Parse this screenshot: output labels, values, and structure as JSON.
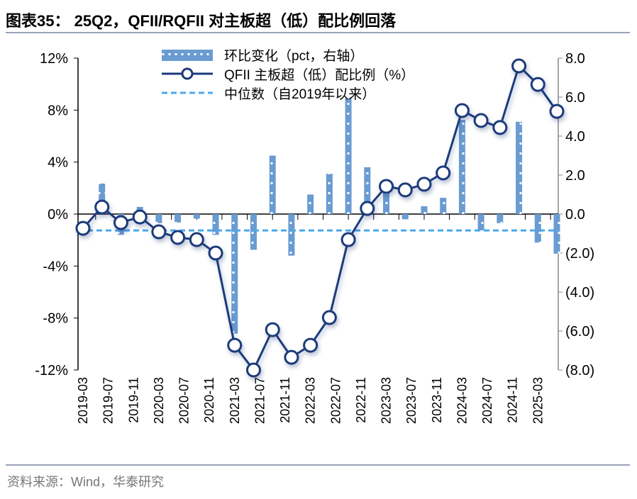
{
  "title": "图表35： 25Q2，QFII/RQFII 对主板超（低）配比例回落",
  "source": "资料来源：Wind，华泰研究",
  "colors": {
    "bar": "#6a9bd1",
    "line": "#1b3a7a",
    "median": "#4aa8ec"
  },
  "chart_data": {
    "type": "bar+line",
    "title": "25Q2，QFII/RQFII 对主板超（低）配比例回落",
    "left_axis": {
      "ylim": [
        -12,
        12
      ],
      "ticks": [
        "-12%",
        "-8%",
        "-4%",
        "0%",
        "4%",
        "8%",
        "12%"
      ],
      "tick_values": [
        -12,
        -8,
        -4,
        0,
        4,
        8,
        12
      ]
    },
    "right_axis": {
      "ylim": [
        -8,
        8
      ],
      "ticks": [
        "(8.0)",
        "(6.0)",
        "(4.0)",
        "(2.0)",
        "0.0",
        "2.0",
        "4.0",
        "6.0",
        "8.0"
      ],
      "tick_values": [
        -8,
        -6,
        -4,
        -2,
        0,
        2,
        4,
        6,
        8
      ]
    },
    "x_tick_labels": [
      "2019-03",
      "2019-07",
      "2019-11",
      "2020-03",
      "2020-07",
      "2020-11",
      "2021-03",
      "2021-07",
      "2021-11",
      "2022-03",
      "2022-07",
      "2022-11",
      "2023-03",
      "2023-07",
      "2023-11",
      "2024-03",
      "2024-07",
      "2024-11",
      "2025-03"
    ],
    "x": [
      "2019Q1",
      "2019Q2",
      "2019Q3",
      "2019Q4",
      "2020Q1",
      "2020Q2",
      "2020Q3",
      "2020Q4",
      "2021Q1",
      "2021Q2",
      "2021Q3",
      "2021Q4",
      "2022Q1",
      "2022Q2",
      "2022Q3",
      "2022Q4",
      "2023Q1",
      "2023Q2",
      "2023Q3",
      "2023Q4",
      "2024Q1",
      "2024Q2",
      "2024Q3",
      "2024Q4",
      "2025Q1",
      "2025Q2"
    ],
    "series": [
      {
        "name": "环比变化（pct，右轴）",
        "type": "bar",
        "axis": "left",
        "values": [
          null,
          2.35,
          -1.6,
          0.55,
          -0.7,
          -0.65,
          -0.35,
          -1.6,
          -9.2,
          -2.75,
          4.5,
          -3.2,
          1.5,
          3.1,
          8.9,
          3.6,
          1.85,
          -0.4,
          0.6,
          1.25,
          7.25,
          -1.25,
          -0.7,
          7.1,
          -2.2,
          -3.05
        ]
      },
      {
        "name": "QFII 主板超（低）配比例（%）",
        "type": "line",
        "axis": "right",
        "values": [
          -0.73,
          0.36,
          -0.44,
          -0.15,
          -0.91,
          -1.2,
          -1.31,
          -2.0,
          -6.73,
          -8.0,
          -5.93,
          -7.35,
          -6.73,
          -5.31,
          -1.31,
          0.29,
          1.42,
          1.24,
          1.53,
          2.11,
          5.31,
          4.8,
          4.44,
          7.6,
          6.65,
          5.27
        ]
      },
      {
        "name": "中位数（自2019年以来）",
        "type": "hline",
        "axis": "right",
        "value": -0.84
      }
    ],
    "legend": "top-center",
    "grid": false
  }
}
